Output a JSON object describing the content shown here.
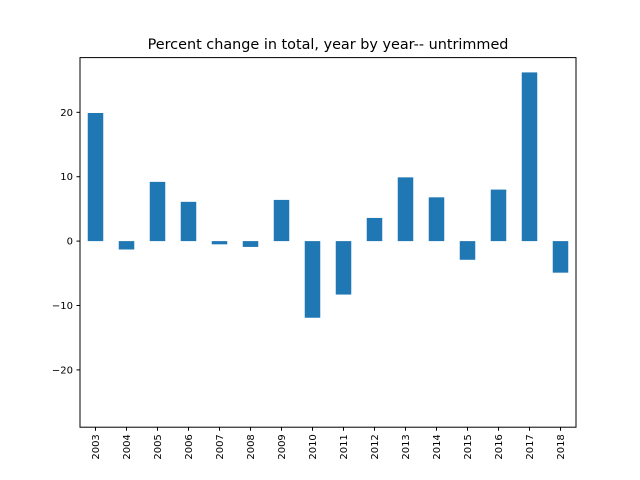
{
  "chart_data": {
    "type": "bar",
    "title": "Percent change in total, year by year-- untrimmed",
    "xlabel": "_",
    "ylabel": "",
    "categories": [
      "2003",
      "2004",
      "2005",
      "2006",
      "2007",
      "2008",
      "2009",
      "2010",
      "2011",
      "2012",
      "2013",
      "2014",
      "2015",
      "2016",
      "2017",
      "2018"
    ],
    "values": [
      19.9,
      -1.3,
      9.2,
      6.1,
      -0.5,
      -0.9,
      6.4,
      -11.9,
      -8.3,
      3.6,
      9.9,
      6.8,
      -2.9,
      8.0,
      26.2,
      -4.9
    ],
    "ylim": [
      -28.9,
      28.5
    ],
    "yticks": [
      -20,
      -10,
      0,
      10,
      20
    ],
    "ytick_labels": [
      "−20",
      "−10",
      "0",
      "10",
      "20"
    ],
    "bar_color": "#1f77b4",
    "grid": false,
    "legend": "none"
  }
}
